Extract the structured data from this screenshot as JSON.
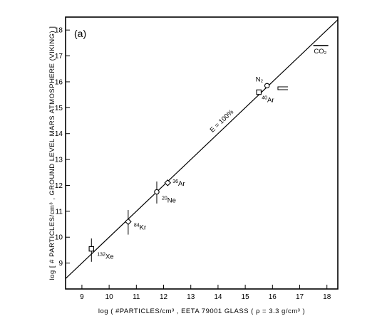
{
  "chart_data": {
    "type": "scatter",
    "panel_label": "(a)",
    "xlabel": "log ( #PARTICLES/cm³ , EETA 79001 GLASS ( ρ = 3.3 g/cm³ )",
    "ylabel": "log [ # PARTICLES/cm³ , GROUND LEVEL MARS ATMOSPHERE (VIKING) ]",
    "xlim": [
      8.4,
      18.4
    ],
    "ylim": [
      8,
      18.5
    ],
    "xticks": [
      9,
      10,
      11,
      12,
      13,
      14,
      15,
      16,
      17,
      18
    ],
    "yticks": [
      9,
      10,
      11,
      12,
      13,
      14,
      15,
      16,
      17,
      18
    ],
    "line_label": "E = 100%",
    "line_x": [
      8.4,
      18.4
    ],
    "line_y": [
      8.4,
      18.4
    ],
    "co2_label": "CO₂",
    "co2_level": 17.4,
    "points": [
      {
        "name": "132Xe",
        "mass": "132",
        "element": "Xe",
        "x": 9.35,
        "y": 9.55,
        "yerr": [
          9.05,
          9.95
        ],
        "marker": "square"
      },
      {
        "name": "84Kr",
        "mass": "84",
        "element": "Kr",
        "x": 10.7,
        "y": 10.6,
        "yerr": [
          10.1,
          11.05
        ],
        "marker": "diamond"
      },
      {
        "name": "20Ne",
        "mass": "20",
        "element": "Ne",
        "x": 11.75,
        "y": 11.75,
        "yerr": [
          11.3,
          12.15
        ],
        "marker": "circle"
      },
      {
        "name": "36Ar",
        "mass": "36",
        "element": "Ar",
        "x": 12.15,
        "y": 12.1,
        "yerr": null,
        "marker": "diamond"
      },
      {
        "name": "40Ar",
        "mass": "40",
        "element": "Ar",
        "x": 15.5,
        "y": 15.6,
        "yerr": null,
        "marker": "square"
      },
      {
        "name": "N2",
        "mass": "",
        "element": "N₂",
        "x": 15.8,
        "y": 15.85,
        "yerr": null,
        "marker": "circle"
      }
    ]
  }
}
